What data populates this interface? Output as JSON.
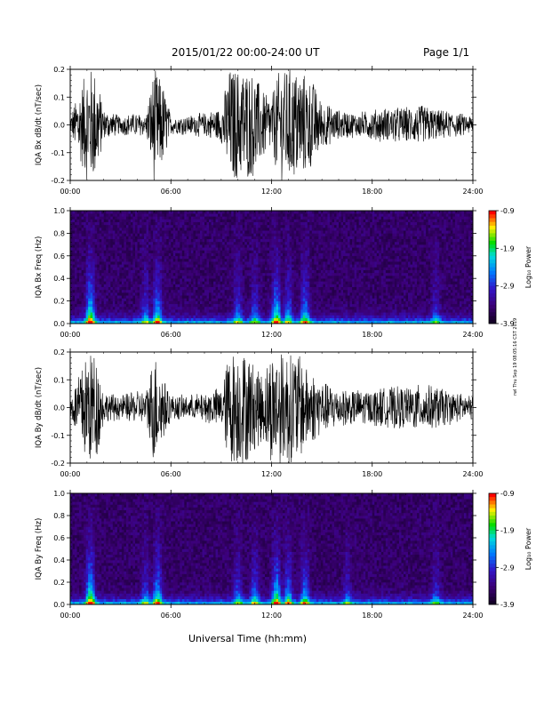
{
  "header": {
    "title": "2015/01/22  00:00-24:00 UT",
    "page": "Page 1/1"
  },
  "footer": {
    "xlabel": "Universal Time (hh:mm)",
    "side_note": "rwl Thu Sep 19 08:05:16 CST 2019"
  },
  "colorbar": {
    "label": "Log₁₀ Power",
    "ticks": [
      "-0.9",
      "-1.9",
      "-2.9",
      "-3.9"
    ]
  },
  "chart_data": [
    {
      "type": "line",
      "ylabel": "IQA Bx dB/dt (nT/sec)",
      "ylim": [
        -0.2,
        0.2
      ],
      "yticks": [
        "0.2",
        "0.1",
        "0.0",
        "-0.1",
        "-0.2"
      ],
      "xticks": [
        "00:00",
        "06:00",
        "12:00",
        "18:00",
        "24:00"
      ],
      "x_hours": [
        0,
        1,
        1.5,
        2,
        3,
        4,
        4.5,
        5,
        5.5,
        6,
        7,
        8,
        9,
        9.5,
        10,
        10.5,
        11,
        11.5,
        12,
        12.5,
        13,
        13.5,
        14,
        14.5,
        15,
        16,
        17,
        18,
        19,
        20,
        21,
        22,
        23,
        24
      ],
      "envelope": [
        0.03,
        0.2,
        0.2,
        0.05,
        0.03,
        0.04,
        0.03,
        0.2,
        0.15,
        0.03,
        0.03,
        0.04,
        0.06,
        0.2,
        0.2,
        0.2,
        0.18,
        0.12,
        0.1,
        0.2,
        0.2,
        0.2,
        0.18,
        0.15,
        0.08,
        0.05,
        0.04,
        0.05,
        0.06,
        0.06,
        0.07,
        0.05,
        0.04,
        0.03
      ],
      "grid": false
    },
    {
      "type": "heatmap",
      "ylabel": "IQA Bx Freq (Hz)",
      "ylim": [
        0.0,
        1.0
      ],
      "yticks": [
        "1.0",
        "0.8",
        "0.6",
        "0.4",
        "0.2",
        "0.0"
      ],
      "xticks": [
        "00:00",
        "06:00",
        "12:00",
        "18:00",
        "24:00"
      ],
      "zlim": [
        -3.9,
        -0.9
      ],
      "activity_hours": [
        1.2,
        4.5,
        5.2,
        10.0,
        11.0,
        12.3,
        13.0,
        14.0,
        21.8
      ],
      "activity_strength": [
        1.0,
        0.5,
        0.8,
        0.5,
        0.5,
        0.9,
        0.6,
        0.7,
        0.4
      ]
    },
    {
      "type": "line",
      "ylabel": "IQA By dB/dt (nT/sec)",
      "ylim": [
        -0.2,
        0.2
      ],
      "yticks": [
        "0.2",
        "0.1",
        "0.0",
        "-0.1",
        "-0.2"
      ],
      "xticks": [
        "00:00",
        "06:00",
        "12:00",
        "18:00",
        "24:00"
      ],
      "x_hours": [
        0,
        1,
        1.5,
        2,
        3,
        4,
        4.5,
        5,
        5.5,
        6,
        7,
        8,
        9,
        9.5,
        10,
        10.5,
        11,
        11.5,
        12,
        12.5,
        13,
        13.5,
        14,
        14.5,
        15,
        16,
        17,
        18,
        19,
        20,
        21,
        22,
        23,
        24
      ],
      "envelope": [
        0.03,
        0.2,
        0.2,
        0.05,
        0.04,
        0.06,
        0.05,
        0.2,
        0.12,
        0.04,
        0.04,
        0.05,
        0.07,
        0.2,
        0.2,
        0.2,
        0.15,
        0.12,
        0.2,
        0.2,
        0.2,
        0.2,
        0.15,
        0.12,
        0.09,
        0.07,
        0.06,
        0.06,
        0.07,
        0.07,
        0.08,
        0.07,
        0.05,
        0.04
      ],
      "grid": false
    },
    {
      "type": "heatmap",
      "ylabel": "IQA By Freq (Hz)",
      "ylim": [
        0.0,
        1.0
      ],
      "yticks": [
        "1.0",
        "0.8",
        "0.6",
        "0.4",
        "0.2",
        "0.0"
      ],
      "xticks": [
        "00:00",
        "06:00",
        "12:00",
        "18:00",
        "24:00"
      ],
      "zlim": [
        -3.9,
        -0.9
      ],
      "activity_hours": [
        1.2,
        4.5,
        5.2,
        10.0,
        11.0,
        12.3,
        13.0,
        14.0,
        16.5,
        21.8
      ],
      "activity_strength": [
        1.0,
        0.5,
        0.8,
        0.5,
        0.6,
        0.9,
        0.7,
        0.7,
        0.4,
        0.4
      ]
    }
  ]
}
